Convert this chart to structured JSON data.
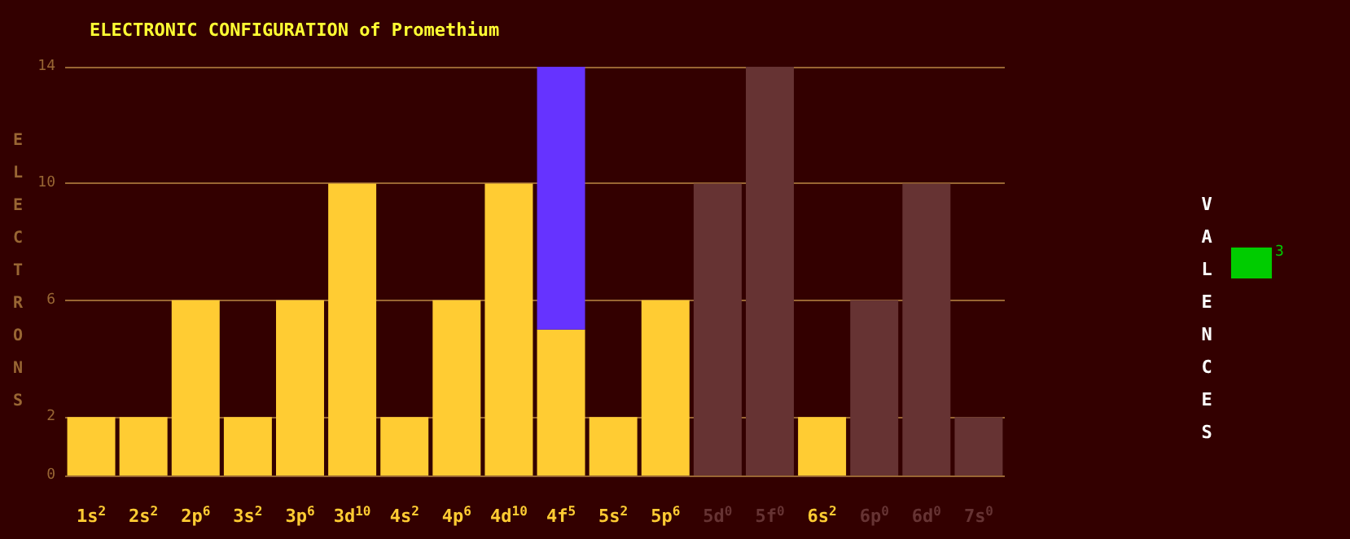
{
  "chart_data": {
    "type": "bar",
    "title": "ELECTRONIC CONFIGURATION of Promethium",
    "ylabel": "ELECTRONS",
    "categories": [
      "1s$^{2}$",
      "2s$^{2}$",
      "2p$^{6}$",
      "3s$^{2}$",
      "3p$^{6}$",
      "3d$^{10}$",
      "4s$^{2}$",
      "4p$^{6}$",
      "4d$^{10}$",
      "4f$^{5}$",
      "5s$^{2}$",
      "5p$^{6}$",
      "5d$^{0}$",
      "5f$^{0}$",
      "6s$^{2}$",
      "6p$^{0}$",
      "6d$^{0}$",
      "7s$^{0}$"
    ],
    "stacked": true,
    "series": [
      {
        "color": "#ffcc33",
        "values": [
          2,
          2,
          6,
          2,
          6,
          10,
          2,
          6,
          10,
          5,
          2,
          6,
          0,
          0,
          2,
          0,
          0,
          0
        ]
      },
      {
        "color": "#6633ff",
        "values": [
          0,
          0,
          0,
          0,
          0,
          0,
          0,
          0,
          0,
          9,
          0,
          0,
          0,
          0,
          0,
          0,
          0,
          0
        ]
      },
      {
        "color": "#663333",
        "values": [
          0,
          0,
          0,
          0,
          0,
          0,
          0,
          0,
          0,
          0,
          0,
          0,
          10,
          14,
          0,
          6,
          10,
          2
        ]
      }
    ],
    "ylim": [
      0,
      14
    ],
    "yticks": [
      0,
      2,
      6,
      10,
      14
    ],
    "grid": "y",
    "annotations": [
      "VALENCES",
      "3"
    ]
  }
}
